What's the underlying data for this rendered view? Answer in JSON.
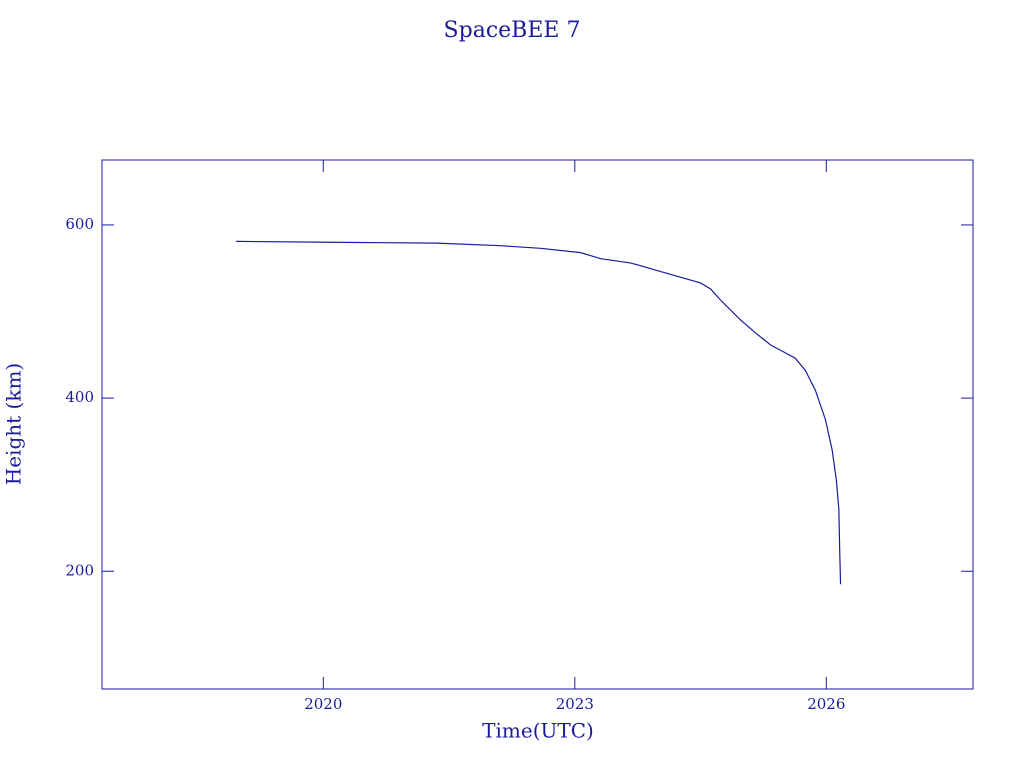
{
  "chart_data": {
    "type": "line",
    "title": "SpaceBEE 7",
    "x_label": "Time(UTC)",
    "y_label": "Height (km)",
    "x": [
      2018.96,
      2020.08,
      2021.35,
      2022.12,
      2022.59,
      2023.07,
      2023.31,
      2023.67,
      2024.03,
      2024.5,
      2024.62,
      2024.74,
      2024.98,
      2025.16,
      2025.34,
      2025.46,
      2025.63,
      2025.75,
      2025.87,
      2025.99,
      2026.07,
      2026.12,
      2026.15,
      2026.16,
      2026.17
    ],
    "series": [
      {
        "color": "#1a1a9c",
        "values": [
          581,
          580,
          579,
          576,
          573,
          568,
          561,
          556,
          546,
          533,
          526,
          513,
          490,
          475,
          461,
          455,
          446,
          432,
          409,
          375,
          340,
          305,
          271,
          224,
          185
        ]
      }
    ],
    "xlim": [
      2017.36,
      2027.75
    ],
    "xticks": [
      2020,
      2023,
      2026
    ],
    "ylim": [
      64,
      675
    ],
    "yticks": [
      200,
      400,
      600
    ],
    "grid": false
  }
}
